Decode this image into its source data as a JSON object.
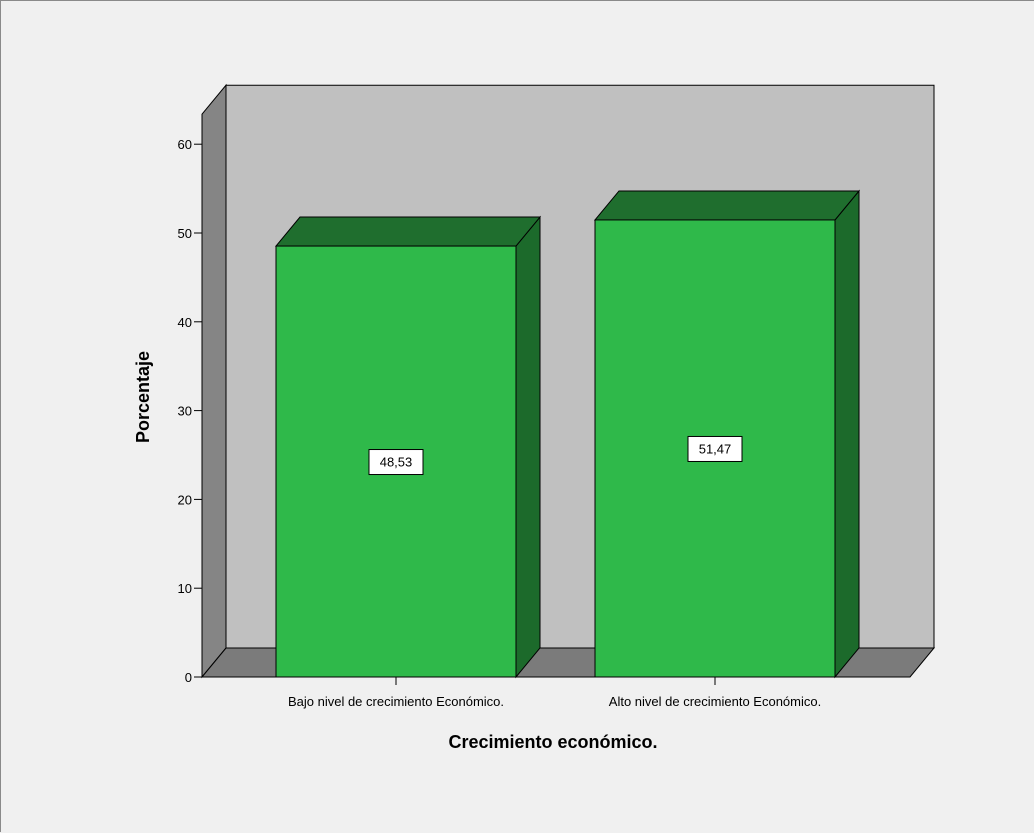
{
  "chart_data": {
    "type": "bar",
    "categories": [
      "Bajo nivel de crecimiento Económico.",
      "Alto nivel de crecimiento Económico."
    ],
    "values": [
      48.53,
      51.47
    ],
    "data_labels": [
      "48,53",
      "51,47"
    ],
    "xlabel": "Crecimiento económico.",
    "ylabel": "Porcentaje",
    "ylim": [
      0,
      60
    ],
    "yticks": [
      0,
      10,
      20,
      30,
      40,
      50,
      60
    ],
    "grid": false,
    "style": "3d",
    "colors": {
      "bar_front": "#2fb94a",
      "bar_top": "#1f6e2e",
      "bar_side": "#1c6a2b",
      "back_wall": "#c0c0c0",
      "side_wall": "#858585",
      "floor": "#7b7b7b",
      "background": "#f0f0f0"
    }
  }
}
